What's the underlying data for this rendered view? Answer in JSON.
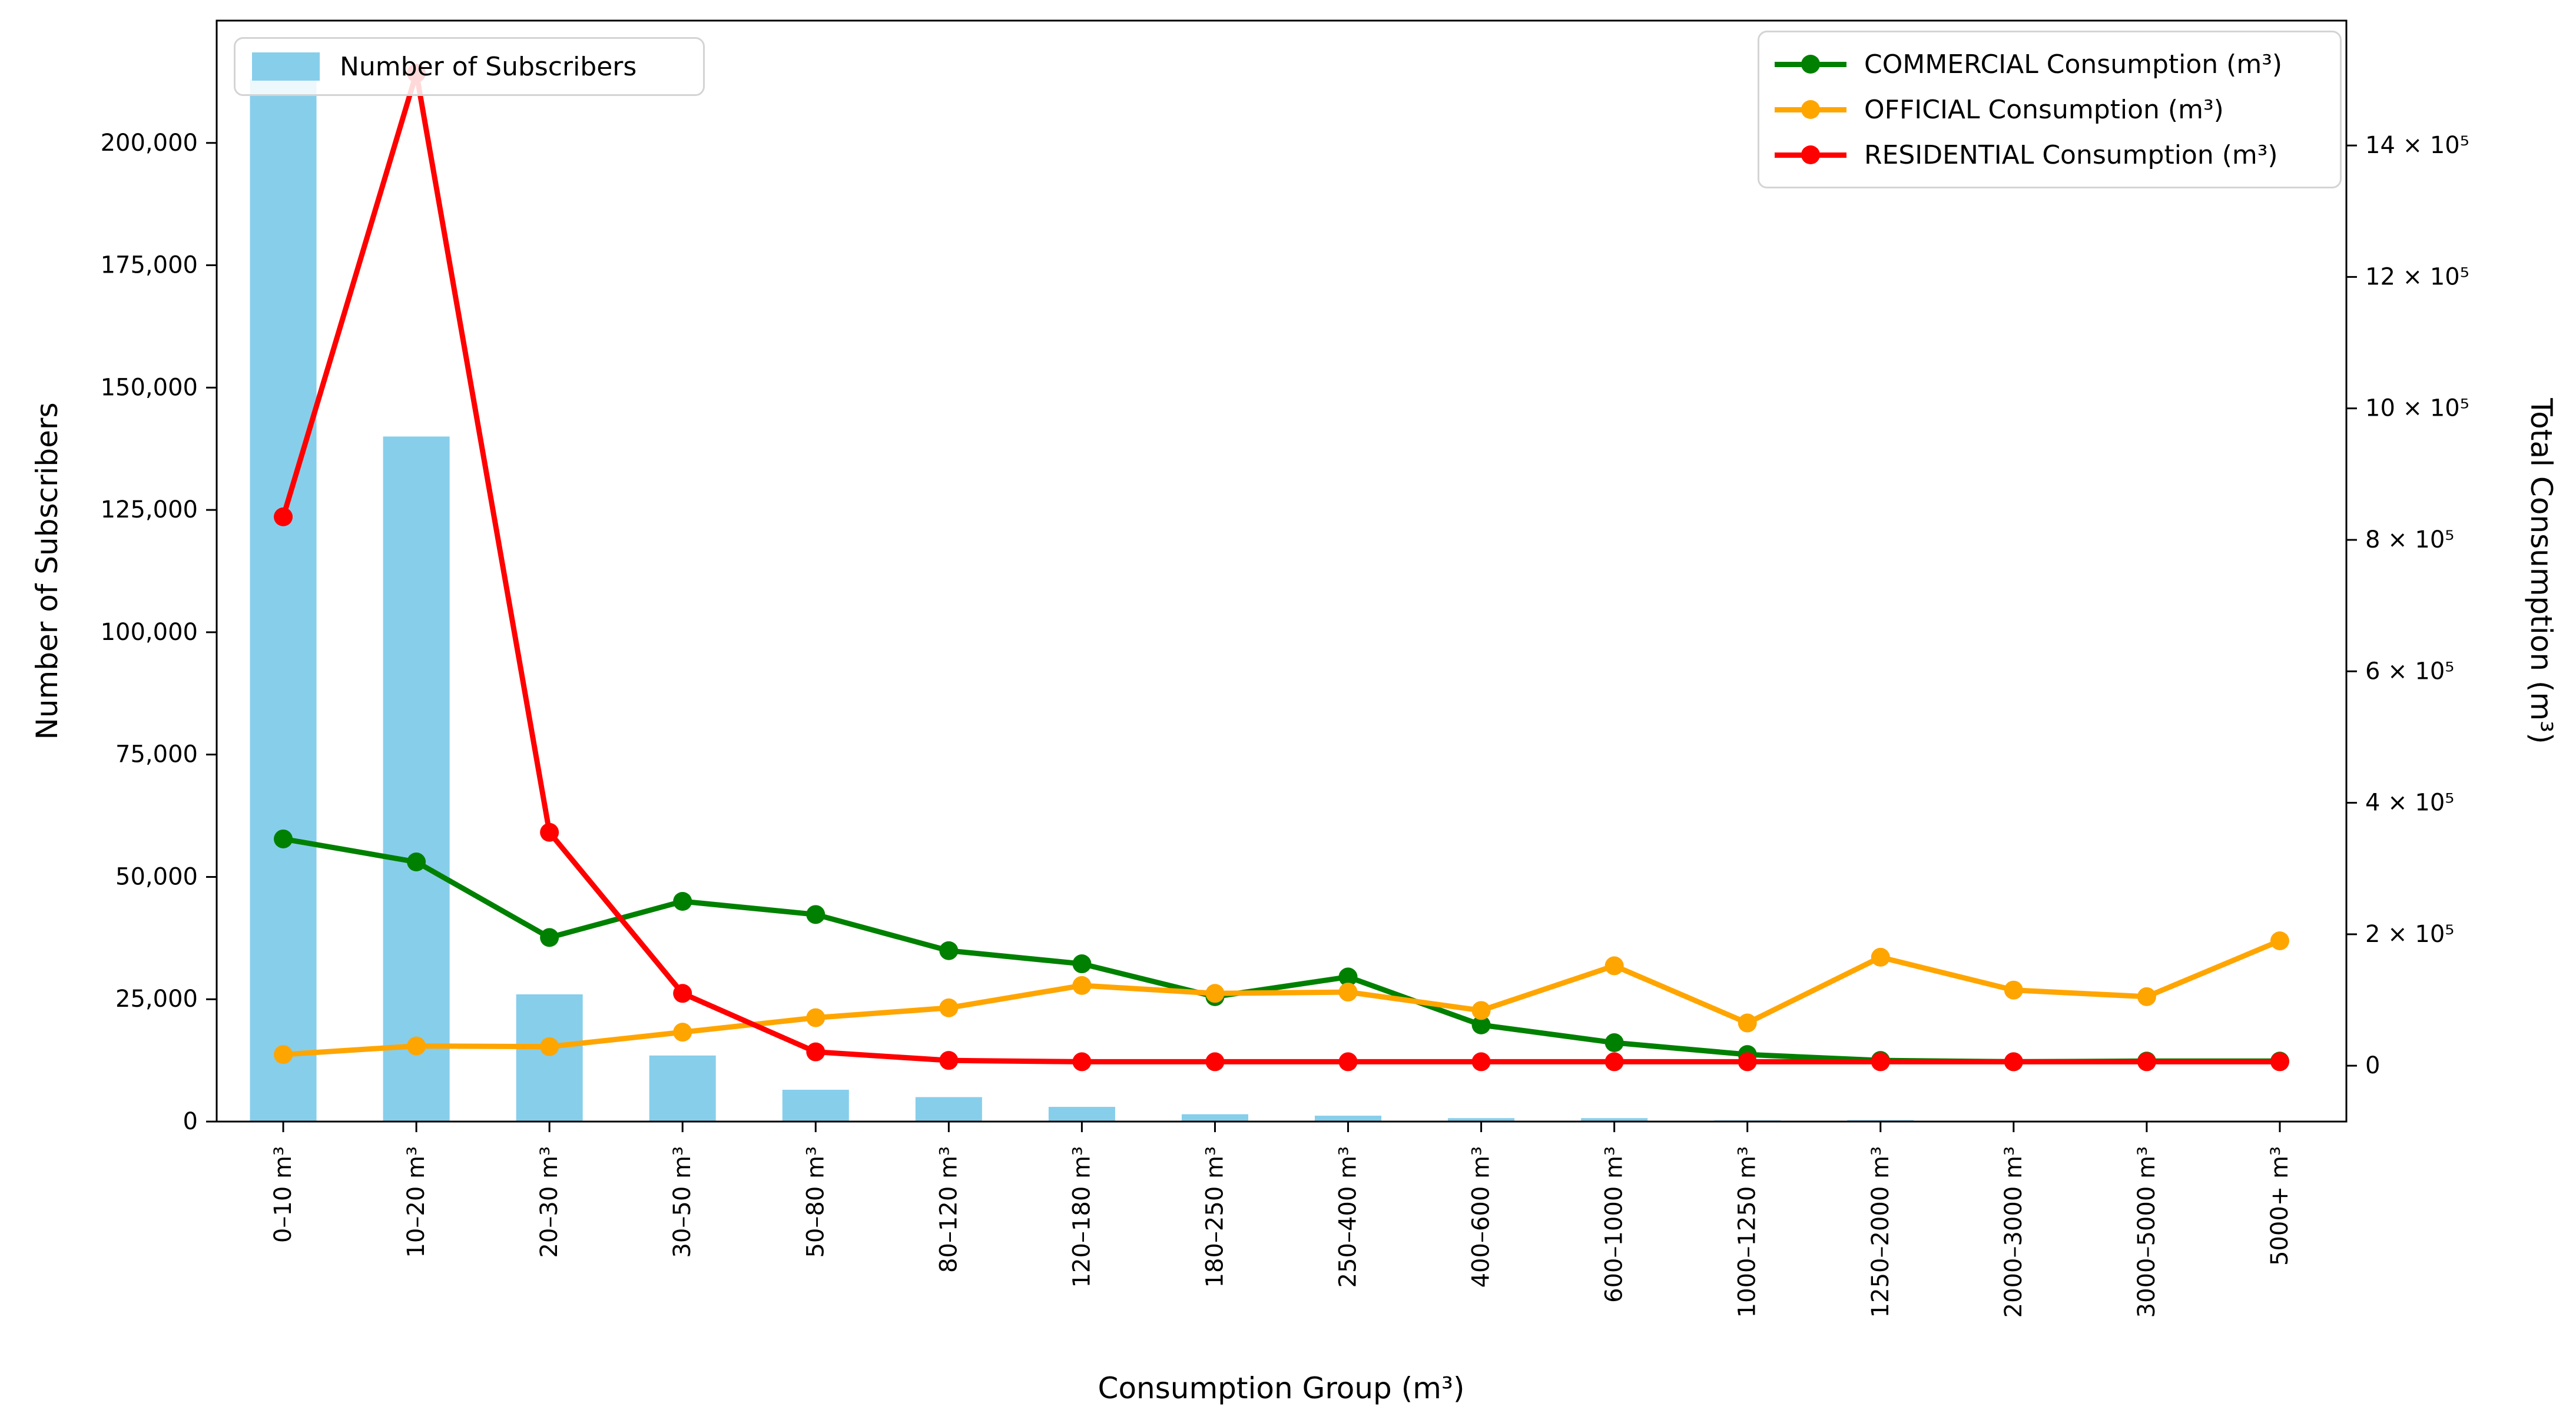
{
  "figure": {
    "background": "#ffffff"
  },
  "legend_bar": {
    "label": "Number of Subscribers",
    "swatch_color": "#87CEEB"
  },
  "legend_lines": {
    "items": [
      {
        "label": "COMMERCIAL Consumption (m³)",
        "color": "#008000"
      },
      {
        "label": "OFFICIAL Consumption (m³)",
        "color": "#FFA500"
      },
      {
        "label": "RESIDENTIAL Consumption (m³)",
        "color": "#FF0000"
      }
    ]
  },
  "chart_data": {
    "type": "bar+line",
    "categories": [
      "0–10 m³",
      "10–20 m³",
      "20–30 m³",
      "30–50 m³",
      "50–80 m³",
      "80–120 m³",
      "120–180 m³",
      "180–250 m³",
      "250–400 m³",
      "400–600 m³",
      "600–1000 m³",
      "1000–1250 m³",
      "1250–2000 m³",
      "2000–3000 m³",
      "3000–5000 m³",
      "5000+ m³"
    ],
    "bar_series": {
      "name": "Number of Subscribers",
      "axis": "left",
      "color": "#87CEEB",
      "values": [
        213000,
        140000,
        26000,
        13500,
        6500,
        5000,
        3000,
        1500,
        1200,
        700,
        700,
        250,
        300,
        150,
        150,
        150
      ]
    },
    "line_series": [
      {
        "name": "COMMERCIAL Consumption (m³)",
        "id": "commercial",
        "axis": "right",
        "color": "#008000",
        "values": [
          345000,
          310000,
          195000,
          250000,
          230000,
          175000,
          155000,
          105000,
          135000,
          62000,
          35000,
          17000,
          8000,
          6000,
          7000,
          7000
        ]
      },
      {
        "name": "OFFICIAL Consumption (m³)",
        "id": "official",
        "axis": "right",
        "color": "#FFA500",
        "values": [
          17000,
          30000,
          29000,
          51000,
          73000,
          88000,
          122000,
          110000,
          112000,
          84000,
          152000,
          65000,
          165000,
          115000,
          105000,
          190000
        ]
      },
      {
        "name": "RESIDENTIAL Consumption (m³)",
        "id": "residential",
        "axis": "right",
        "color": "#FF0000",
        "values": [
          835000,
          1510000,
          355000,
          110000,
          21000,
          8000,
          6000,
          6000,
          6000,
          6000,
          6000,
          6000,
          6000,
          6000,
          6000,
          6000
        ]
      }
    ],
    "left_axis": {
      "label": "Number of Subscribers",
      "ticks": [
        0,
        25000,
        50000,
        75000,
        100000,
        125000,
        150000,
        175000,
        200000
      ],
      "tick_labels": [
        "0",
        "25,000",
        "50,000",
        "75,000",
        "100,000",
        "125,000",
        "150,000",
        "175,000",
        "200,000"
      ],
      "range": [
        0,
        225000
      ]
    },
    "right_axis": {
      "label": "Total Consumption (m³)",
      "ticks": [
        0,
        200000,
        400000,
        600000,
        800000,
        1000000,
        1200000,
        1400000
      ],
      "tick_labels": [
        "0",
        "2 × 10⁵",
        "4 × 10⁵",
        "6 × 10⁵",
        "8 × 10⁵",
        "10 × 10⁵",
        "12 × 10⁵",
        "14 × 10⁵"
      ],
      "range": [
        -85000,
        1590000
      ]
    },
    "x_axis": {
      "label": "Consumption Group (m³)"
    },
    "grid": false,
    "legend_positions": {
      "bar": "upper left",
      "lines": "upper right"
    }
  }
}
